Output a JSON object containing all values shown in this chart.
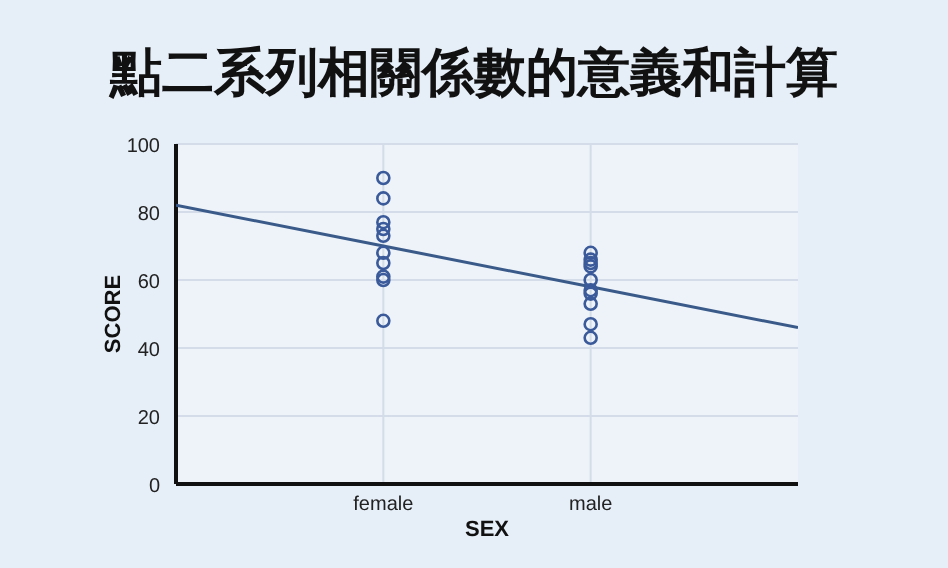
{
  "chart_data": {
    "type": "scatter",
    "title": "點二系列相關係數的意義和計算",
    "xlabel": "SEX",
    "ylabel": "SCORE",
    "categories": [
      null,
      "female",
      "male",
      null
    ],
    "ylim": [
      0,
      100
    ],
    "yticks": [
      0,
      20,
      40,
      60,
      80,
      100
    ],
    "grid": true,
    "series": [
      {
        "color": "#3a5a9a",
        "marker": "circle",
        "x": [
          "female",
          "female",
          "female",
          "female",
          "female",
          "female",
          "female",
          "female",
          "female",
          "female",
          "male",
          "male",
          "male",
          "male",
          "male",
          "male",
          "male",
          "male",
          "male",
          "male"
        ],
        "values": [
          90,
          84,
          77,
          75,
          73,
          68,
          65,
          61,
          60,
          48,
          68,
          66,
          65,
          64,
          60,
          57,
          56,
          53,
          47,
          43
        ]
      },
      {
        "type": "line",
        "color": "#3a5a8a",
        "values": [
          82,
          70,
          58,
          46
        ]
      }
    ]
  }
}
